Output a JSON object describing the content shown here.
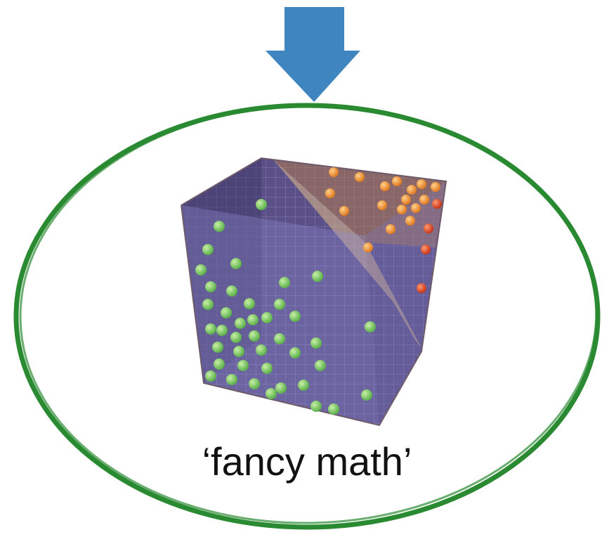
{
  "label": "‘fancy math’"
}
